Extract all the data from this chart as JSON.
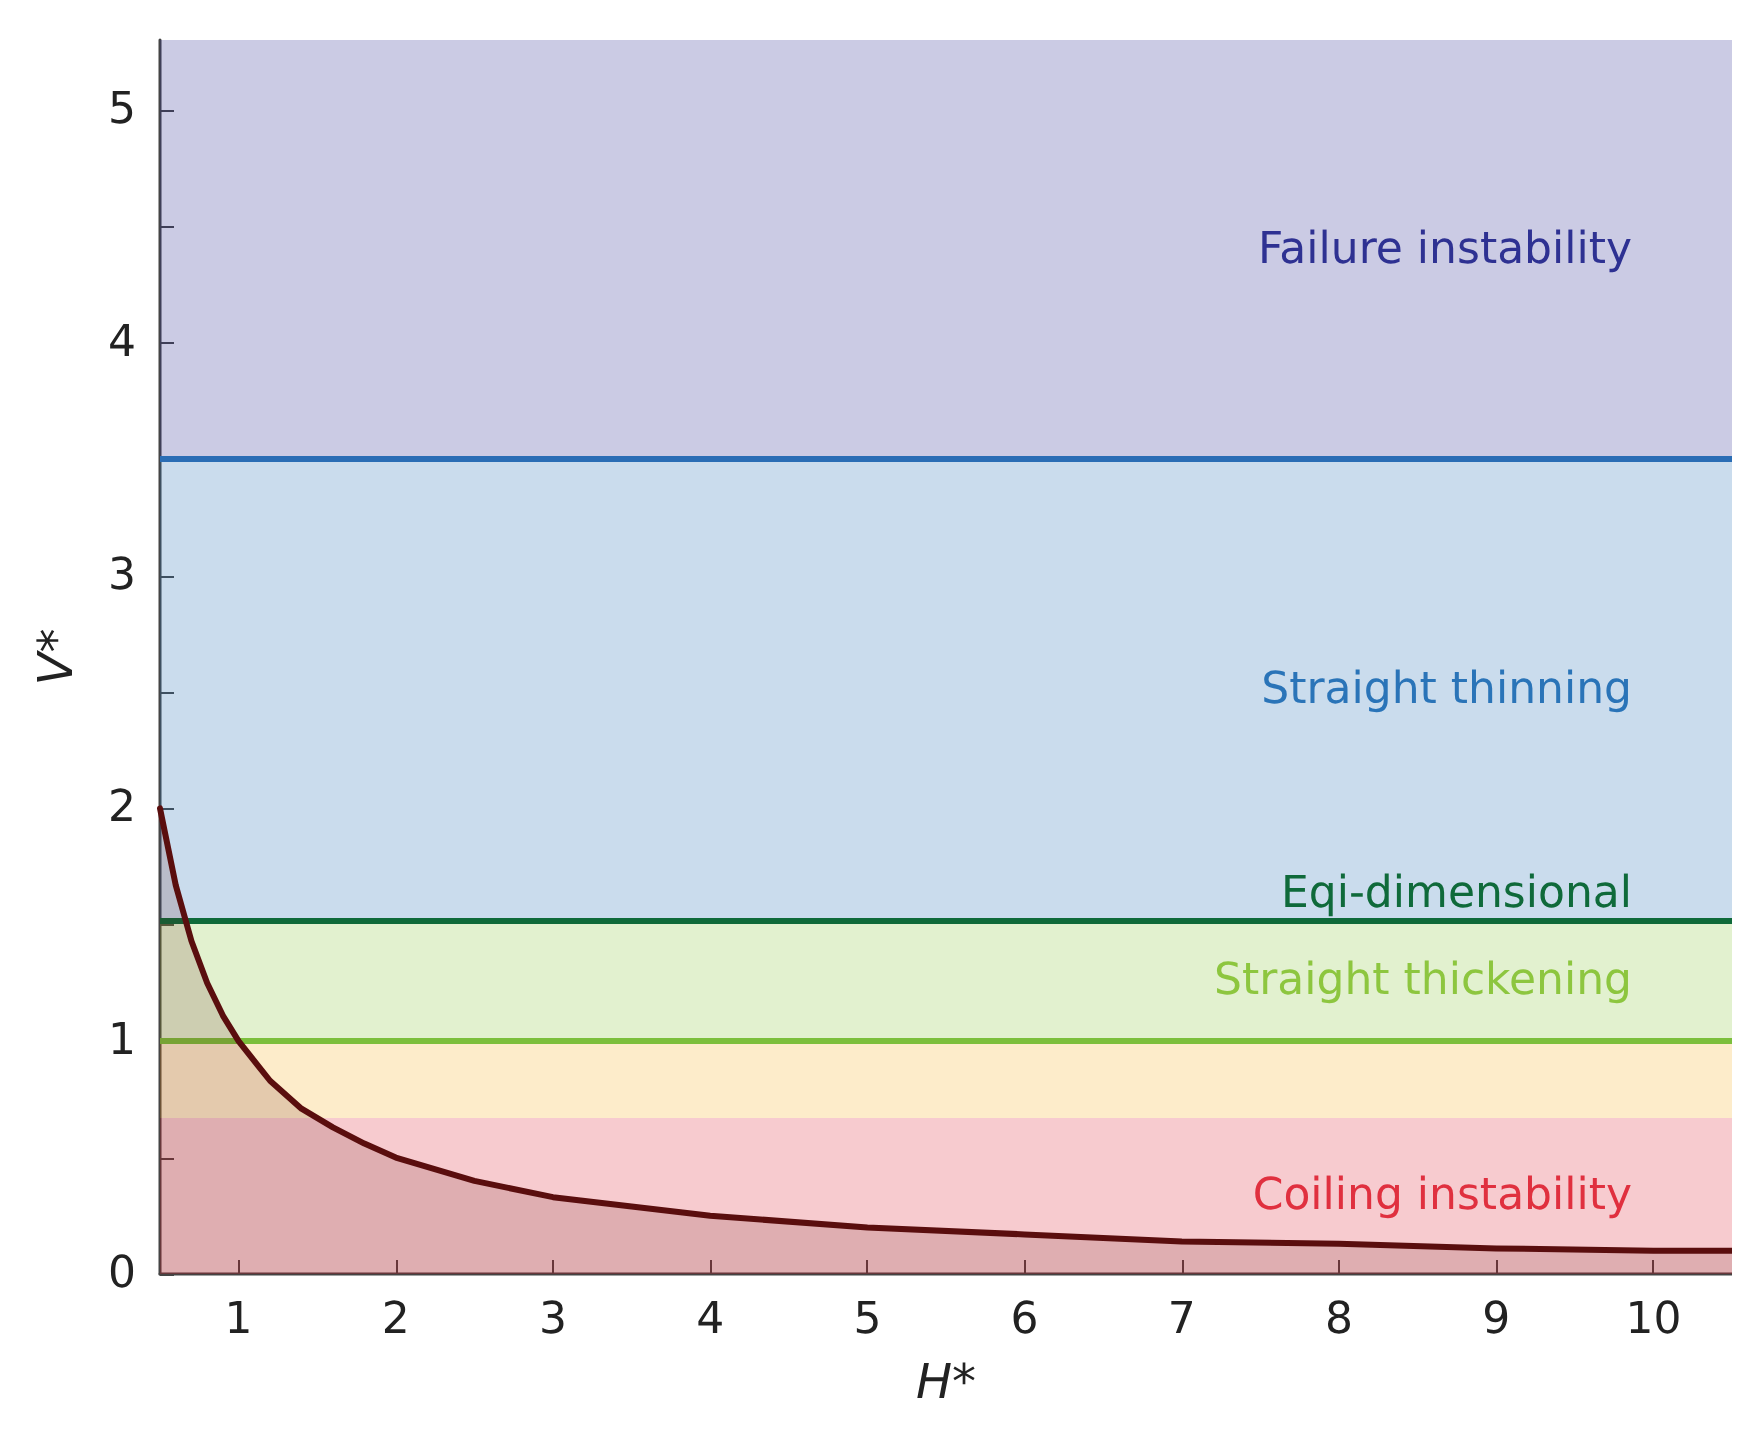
{
  "chart_data": {
    "type": "area",
    "xlabel": "H*",
    "ylabel": "V*",
    "x": [
      0.5,
      0.6,
      0.7,
      0.8,
      0.9,
      1,
      1.2,
      1.4,
      1.6,
      1.8,
      2,
      2.5,
      3,
      3.5,
      4,
      5,
      6,
      7,
      8,
      9,
      10,
      10.5
    ],
    "series": [
      {
        "color": "#5a0e0e",
        "values": [
          2,
          1.67,
          1.43,
          1.25,
          1.11,
          1,
          0.83,
          0.71,
          0.63,
          0.56,
          0.5,
          0.4,
          0.33,
          0.29,
          0.25,
          0.2,
          0.17,
          0.14,
          0.13,
          0.11,
          0.1,
          0.1
        ]
      }
    ],
    "xlim": [
      0.5,
      10.5
    ],
    "xticks": [
      1,
      2,
      3,
      4,
      5,
      6,
      7,
      8,
      9,
      10
    ],
    "ylim": [
      0,
      5.3
    ],
    "yticks": [
      0,
      {
        "value": 0.5,
        "label": null
      },
      1,
      {
        "value": 1.5,
        "label": null
      },
      2,
      {
        "value": 2.5,
        "label": null
      },
      3,
      {
        "value": 3.5,
        "label": null
      },
      4,
      {
        "value": 4.5,
        "label": null
      },
      5
    ],
    "bands": [
      {
        "axis": "y",
        "from": 3.5,
        "to": 5.3,
        "label": "Failure instability",
        "color": "#2e3192"
      },
      {
        "axis": "y",
        "from": 1.52,
        "to": 3.5,
        "label": "Straight thinning",
        "color": "#2a74b8"
      },
      {
        "axis": "y",
        "from": 1,
        "to": 1.52,
        "label": "Straight thickening",
        "color": "#8dc63f"
      },
      {
        "axis": "y",
        "from": 0.67,
        "to": 1,
        "color": "#f7b52c"
      },
      {
        "axis": "y",
        "from": 0,
        "to": 0.67,
        "label": "Coiling instability",
        "color": "#e0303f"
      }
    ],
    "ref_lines": [
      {
        "axis": "y",
        "value": 3.5,
        "color": "#2a6db5"
      },
      {
        "axis": "y",
        "value": 1.52,
        "label": "Eqi-dimensional",
        "color": "#0f6a3a"
      },
      {
        "axis": "y",
        "value": 1,
        "color": "#7cbf3c"
      }
    ],
    "grid": false
  }
}
